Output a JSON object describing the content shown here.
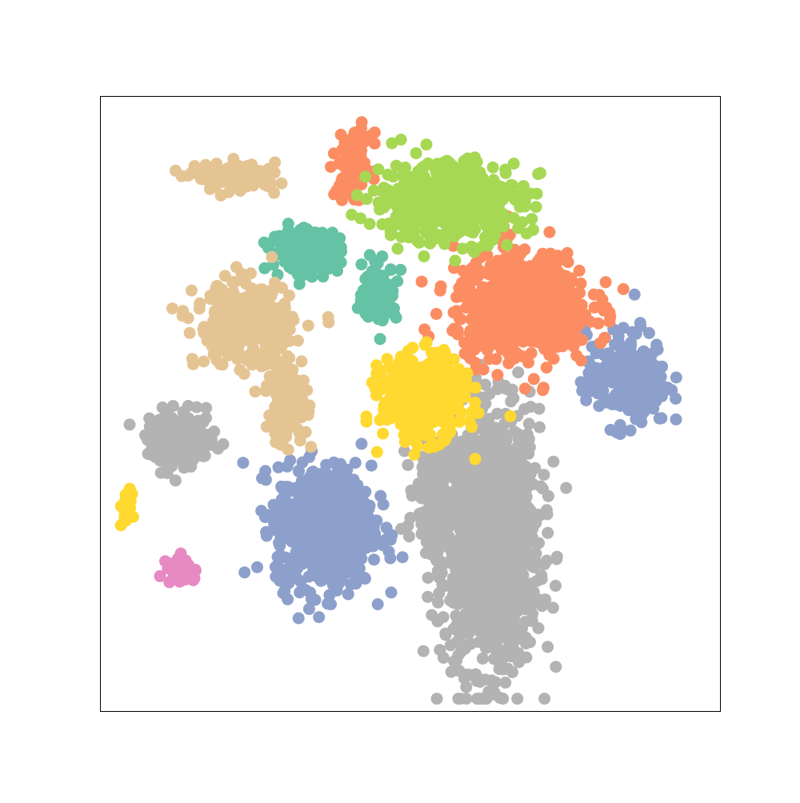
{
  "chart_data": {
    "type": "scatter",
    "title": "",
    "xlabel": "",
    "ylabel": "",
    "grid": false,
    "legend": "none",
    "axes_ticks": "none",
    "xlim": [
      0,
      100
    ],
    "ylim": [
      0,
      100
    ],
    "point_style": "filled circles, opaque, no edge",
    "palette": {
      "orange": "#fc8d62",
      "blue": "#8da0cb",
      "pink": "#e78ac3",
      "green": "#a6d854",
      "yellow": "#ffd92f",
      "tan": "#e5c494",
      "gray": "#b3b3b3",
      "teal": "#66c2a5"
    },
    "clusters": [
      {
        "color": "gray",
        "center": [
          63,
          28
        ],
        "spread": [
          7,
          19
        ],
        "n": 1300
      },
      {
        "color": "gray",
        "center": [
          54,
          36
        ],
        "spread": [
          3,
          9
        ],
        "n": 200
      },
      {
        "color": "blue",
        "center": [
          36,
          30
        ],
        "spread": [
          7,
          9
        ],
        "n": 700
      },
      {
        "color": "blue",
        "center": [
          85,
          54
        ],
        "spread": [
          6,
          7
        ],
        "n": 240
      },
      {
        "color": "orange",
        "center": [
          68,
          66
        ],
        "spread": [
          10,
          8
        ],
        "n": 600
      },
      {
        "color": "orange",
        "center": [
          41,
          89
        ],
        "spread": [
          2.5,
          4.5
        ],
        "n": 120
      },
      {
        "color": "yellow",
        "center": [
          52,
          51
        ],
        "spread": [
          6,
          6
        ],
        "n": 500
      },
      {
        "color": "green",
        "center": [
          56,
          83
        ],
        "spread": [
          11,
          6
        ],
        "n": 480
      },
      {
        "color": "teal",
        "center": [
          33,
          75
        ],
        "spread": [
          5,
          3
        ],
        "n": 220
      },
      {
        "color": "teal",
        "center": [
          45,
          68
        ],
        "spread": [
          2.5,
          4
        ],
        "n": 130
      },
      {
        "color": "tan",
        "center": [
          22,
          87
        ],
        "spread": [
          6,
          2
        ],
        "n": 120
      },
      {
        "color": "tan",
        "center": [
          23,
          63
        ],
        "spread": [
          7,
          6
        ],
        "n": 330
      },
      {
        "color": "tan",
        "center": [
          30,
          51
        ],
        "spread": [
          3,
          7
        ],
        "n": 140
      },
      {
        "color": "gray",
        "center": [
          13,
          44
        ],
        "spread": [
          5,
          4
        ],
        "n": 180
      },
      {
        "color": "pink",
        "center": [
          13,
          23
        ],
        "spread": [
          2,
          2
        ],
        "n": 60
      },
      {
        "color": "yellow",
        "center": [
          4,
          33
        ],
        "spread": [
          1,
          2.5
        ],
        "n": 18
      }
    ]
  }
}
